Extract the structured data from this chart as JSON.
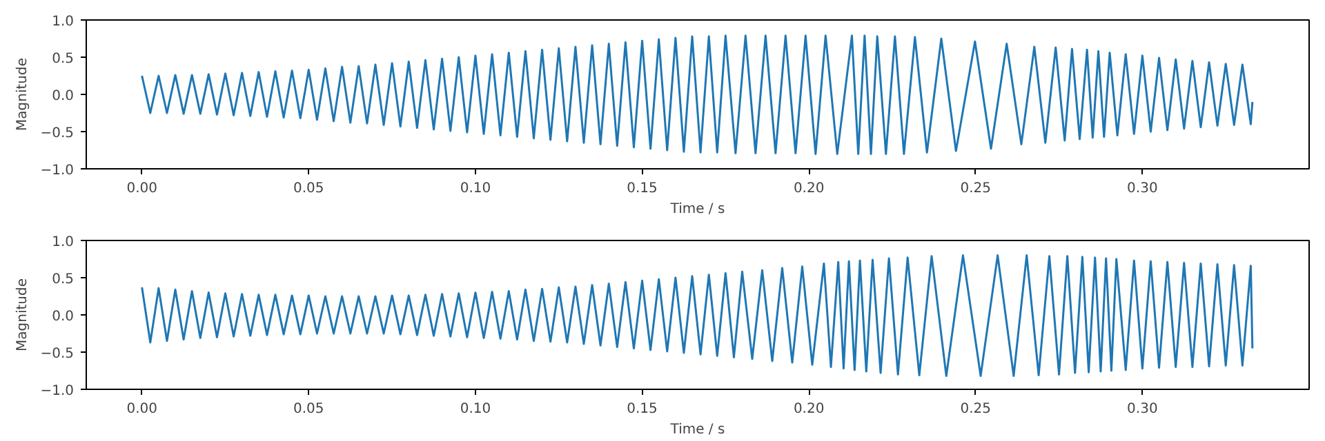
{
  "chart_data": [
    {
      "type": "line",
      "xlabel": "Time / s",
      "ylabel": "Magnitude",
      "grid": false,
      "xlim": [
        -0.0167,
        0.35
      ],
      "ylim": [
        -1.0,
        1.0
      ],
      "xticks": [
        {
          "value": 0,
          "label": "0.00"
        },
        {
          "value": 0.05,
          "label": "0.05"
        },
        {
          "value": 0.1,
          "label": "0.10"
        },
        {
          "value": 0.15,
          "label": "0.15"
        },
        {
          "value": 0.2,
          "label": "0.20"
        },
        {
          "value": 0.25,
          "label": "0.25"
        },
        {
          "value": 0.3,
          "label": "0.30"
        }
      ],
      "yticks": [
        {
          "value": -1,
          "label": "−1.0"
        },
        {
          "value": -0.5,
          "label": "−0.5"
        },
        {
          "value": 0,
          "label": "0.0"
        },
        {
          "value": 0.5,
          "label": "0.5"
        },
        {
          "value": 1,
          "label": "1.0"
        }
      ],
      "x": [
        0,
        0.0025,
        0.005,
        0.0075,
        0.01,
        0.0125,
        0.015,
        0.0175,
        0.02,
        0.0225,
        0.025,
        0.0275,
        0.03,
        0.0325,
        0.035,
        0.0375,
        0.04,
        0.0425,
        0.045,
        0.0475,
        0.05,
        0.0525,
        0.055,
        0.0575,
        0.06,
        0.0625,
        0.065,
        0.0675,
        0.07,
        0.0725,
        0.075,
        0.0775,
        0.08,
        0.0825,
        0.085,
        0.0875,
        0.09,
        0.0925,
        0.095,
        0.0975,
        0.1,
        0.1025,
        0.105,
        0.1075,
        0.11,
        0.1125,
        0.115,
        0.1175,
        0.12,
        0.1225,
        0.125,
        0.1275,
        0.13,
        0.1325,
        0.135,
        0.1375,
        0.14,
        0.1425,
        0.145,
        0.1475,
        0.15,
        0.1525,
        0.155,
        0.1575,
        0.16,
        0.1625,
        0.165,
        0.1675,
        0.17,
        0.1725,
        0.175,
        0.178,
        0.181,
        0.184,
        0.187,
        0.19,
        0.193,
        0.196,
        0.199,
        0.202,
        0.205,
        0.2085,
        0.2129,
        0.2148,
        0.2167,
        0.2186,
        0.2205,
        0.2231,
        0.2258,
        0.2285,
        0.2318,
        0.2354,
        0.2397,
        0.2441,
        0.2498,
        0.2546,
        0.2593,
        0.2637,
        0.2676,
        0.2709,
        0.274,
        0.2767,
        0.2789,
        0.2812,
        0.2834,
        0.2851,
        0.2868,
        0.2885,
        0.2902,
        0.2925,
        0.295,
        0.2975,
        0.3,
        0.3025,
        0.305,
        0.3075,
        0.31,
        0.3125,
        0.315,
        0.3175,
        0.32,
        0.3225,
        0.325,
        0.3275,
        0.33,
        0.3325,
        0.333
      ],
      "series": [
        {
          "color": "#1f77b4",
          "values": [
            0.25,
            -0.25,
            0.25,
            -0.25,
            0.26,
            -0.26,
            0.26,
            -0.26,
            0.27,
            -0.27,
            0.28,
            -0.28,
            0.29,
            -0.29,
            0.3,
            -0.3,
            0.31,
            -0.31,
            0.32,
            -0.32,
            0.33,
            -0.34,
            0.35,
            -0.36,
            0.37,
            -0.38,
            0.38,
            -0.39,
            0.4,
            -0.41,
            0.42,
            -0.43,
            0.44,
            -0.45,
            0.46,
            -0.47,
            0.48,
            -0.49,
            0.5,
            -0.51,
            0.52,
            -0.53,
            0.54,
            -0.55,
            0.56,
            -0.57,
            0.58,
            -0.59,
            0.6,
            -0.61,
            0.62,
            -0.63,
            0.64,
            -0.65,
            0.66,
            -0.67,
            0.68,
            -0.69,
            0.7,
            -0.71,
            0.72,
            -0.73,
            0.74,
            -0.75,
            0.76,
            -0.77,
            0.78,
            -0.78,
            0.78,
            -0.78,
            0.79,
            -0.79,
            0.79,
            -0.79,
            0.79,
            -0.79,
            0.79,
            -0.79,
            0.79,
            -0.8,
            0.79,
            -0.8,
            0.79,
            -0.8,
            0.79,
            -0.8,
            0.78,
            -0.8,
            0.78,
            -0.8,
            0.77,
            -0.78,
            0.75,
            -0.76,
            0.71,
            -0.73,
            0.68,
            -0.67,
            0.64,
            -0.65,
            0.63,
            -0.62,
            0.61,
            -0.6,
            0.6,
            -0.58,
            0.58,
            -0.57,
            0.56,
            -0.55,
            0.54,
            -0.53,
            0.52,
            -0.5,
            0.49,
            -0.48,
            0.47,
            -0.46,
            0.45,
            -0.44,
            0.43,
            -0.42,
            0.41,
            -0.41,
            0.4,
            -0.4,
            -0.1
          ]
        }
      ]
    },
    {
      "type": "line",
      "xlabel": "Time / s",
      "ylabel": "Magnitude",
      "grid": false,
      "xlim": [
        -0.0167,
        0.35
      ],
      "ylim": [
        -1.0,
        1.0
      ],
      "xticks": [
        {
          "value": 0,
          "label": "0.00"
        },
        {
          "value": 0.05,
          "label": "0.05"
        },
        {
          "value": 0.1,
          "label": "0.10"
        },
        {
          "value": 0.15,
          "label": "0.15"
        },
        {
          "value": 0.2,
          "label": "0.20"
        },
        {
          "value": 0.25,
          "label": "0.25"
        },
        {
          "value": 0.3,
          "label": "0.30"
        }
      ],
      "yticks": [
        {
          "value": -1,
          "label": "−1.0"
        },
        {
          "value": -0.5,
          "label": "−0.5"
        },
        {
          "value": 0,
          "label": "0.0"
        },
        {
          "value": 0.5,
          "label": "0.5"
        },
        {
          "value": 1,
          "label": "1.0"
        }
      ],
      "x": [
        0,
        0.0025,
        0.005,
        0.0075,
        0.01,
        0.0125,
        0.015,
        0.0175,
        0.02,
        0.0225,
        0.025,
        0.0275,
        0.03,
        0.0325,
        0.035,
        0.0375,
        0.04,
        0.0425,
        0.045,
        0.0475,
        0.05,
        0.0525,
        0.055,
        0.0575,
        0.06,
        0.0625,
        0.065,
        0.0675,
        0.07,
        0.0725,
        0.075,
        0.0775,
        0.08,
        0.0825,
        0.085,
        0.0875,
        0.09,
        0.0925,
        0.095,
        0.0975,
        0.1,
        0.1025,
        0.105,
        0.1075,
        0.11,
        0.1125,
        0.115,
        0.1175,
        0.12,
        0.1225,
        0.125,
        0.1275,
        0.13,
        0.1325,
        0.135,
        0.1375,
        0.14,
        0.1425,
        0.145,
        0.1475,
        0.15,
        0.1525,
        0.155,
        0.1575,
        0.16,
        0.1625,
        0.165,
        0.1675,
        0.17,
        0.1725,
        0.175,
        0.1775,
        0.18,
        0.183,
        0.186,
        0.189,
        0.192,
        0.195,
        0.198,
        0.201,
        0.2045,
        0.2066,
        0.2088,
        0.2104,
        0.212,
        0.2137,
        0.2153,
        0.2172,
        0.2191,
        0.2215,
        0.224,
        0.2267,
        0.2296,
        0.2331,
        0.2368,
        0.2412,
        0.2462,
        0.2515,
        0.2566,
        0.2614,
        0.2653,
        0.2689,
        0.2721,
        0.275,
        0.2775,
        0.2798,
        0.282,
        0.2839,
        0.2858,
        0.2875,
        0.2891,
        0.2907,
        0.2922,
        0.295,
        0.2975,
        0.3,
        0.3025,
        0.305,
        0.3075,
        0.31,
        0.3125,
        0.315,
        0.3175,
        0.32,
        0.3225,
        0.325,
        0.3275,
        0.33,
        0.3325,
        0.333
      ],
      "series": [
        {
          "color": "#1f77b4",
          "values": [
            0.37,
            -0.37,
            0.36,
            -0.35,
            0.34,
            -0.33,
            0.32,
            -0.31,
            0.3,
            -0.3,
            0.29,
            -0.29,
            0.28,
            -0.28,
            0.27,
            -0.27,
            0.27,
            -0.26,
            0.26,
            -0.26,
            0.26,
            -0.25,
            0.25,
            -0.25,
            0.25,
            -0.25,
            0.25,
            -0.25,
            0.25,
            -0.25,
            0.26,
            -0.26,
            0.26,
            -0.27,
            0.27,
            -0.28,
            0.28,
            -0.29,
            0.29,
            -0.3,
            0.3,
            -0.31,
            0.31,
            -0.32,
            0.32,
            -0.33,
            0.34,
            -0.35,
            0.35,
            -0.36,
            0.37,
            -0.37,
            0.38,
            -0.39,
            0.4,
            -0.41,
            0.42,
            -0.43,
            0.44,
            -0.45,
            0.46,
            -0.47,
            0.48,
            -0.49,
            0.5,
            -0.51,
            0.52,
            -0.53,
            0.54,
            -0.55,
            0.56,
            -0.57,
            0.58,
            -0.59,
            0.6,
            -0.62,
            0.63,
            -0.64,
            0.65,
            -0.67,
            0.69,
            -0.7,
            0.71,
            -0.72,
            0.72,
            -0.74,
            0.73,
            -0.76,
            0.74,
            -0.78,
            0.76,
            -0.8,
            0.77,
            -0.81,
            0.79,
            -0.82,
            0.8,
            -0.82,
            0.8,
            -0.82,
            0.8,
            -0.81,
            0.79,
            -0.8,
            0.79,
            -0.78,
            0.78,
            -0.77,
            0.77,
            -0.76,
            0.76,
            -0.75,
            0.75,
            -0.74,
            0.73,
            -0.72,
            0.72,
            -0.71,
            0.71,
            -0.7,
            0.7,
            -0.7,
            0.69,
            -0.69,
            0.68,
            -0.68,
            0.67,
            -0.68,
            0.66,
            -0.45
          ]
        }
      ]
    }
  ]
}
